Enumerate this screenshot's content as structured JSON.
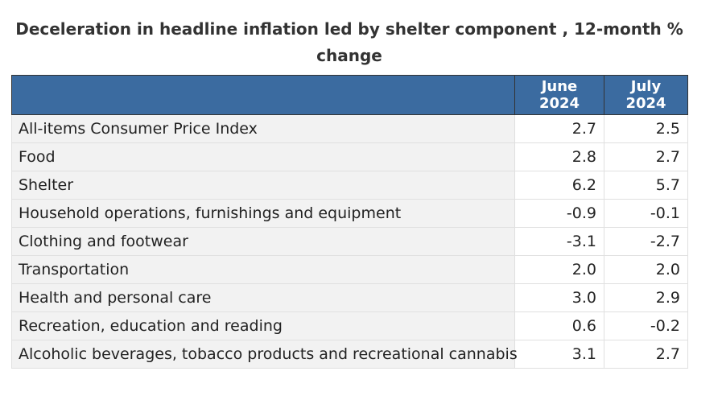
{
  "chart_data": {
    "type": "table",
    "title": "Deceleration in headline inflation led by shelter component , 12-month % change",
    "columns": [
      "",
      "June 2024",
      "July 2024"
    ],
    "rows": [
      {
        "label": "All-items Consumer Price Index",
        "june": "2.7",
        "july": "2.5"
      },
      {
        "label": "Food",
        "june": "2.8",
        "july": "2.7"
      },
      {
        "label": "Shelter",
        "june": "6.2",
        "july": "5.7"
      },
      {
        "label": "Household operations, furnishings and equipment",
        "june": "-0.9",
        "july": "-0.1"
      },
      {
        "label": "Clothing and footwear",
        "june": "-3.1",
        "july": "-2.7"
      },
      {
        "label": "Transportation",
        "june": "2.0",
        "july": "2.0"
      },
      {
        "label": "Health and personal care",
        "june": "3.0",
        "july": "2.9"
      },
      {
        "label": "Recreation, education and reading",
        "june": "0.6",
        "july": "-0.2"
      },
      {
        "label": "Alcoholic beverages, tobacco products and recreational cannabis",
        "june": "3.1",
        "july": "2.7"
      }
    ]
  },
  "colors": {
    "header_background": "#3b6ba0",
    "header_text": "#ffffff",
    "label_cell_background": "#f2f2f2",
    "value_cell_background": "#ffffff"
  }
}
